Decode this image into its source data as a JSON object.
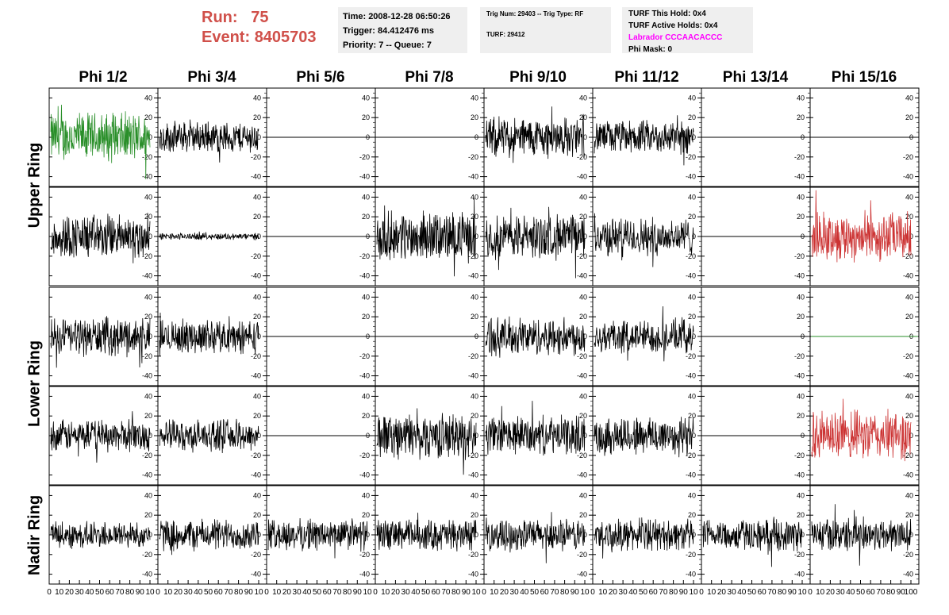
{
  "header": {
    "run_label": "Run:",
    "run_value": "75",
    "event_label": "Event:",
    "event_value": "8405703"
  },
  "info_box_1": {
    "time": "Time: 2008-12-28 06:50:26",
    "trigger": "Trigger: 84.412476 ms",
    "priority": "Priority: 7 -- Queue: 7"
  },
  "info_box_2": {
    "trig": "Trig Num: 29403 -- Trig Type: RF",
    "turf": "TURF: 29412"
  },
  "info_box_3": {
    "hold": "TURF This Hold: 0x4",
    "active": "TURF Active Holds: 0x4",
    "labrador": "Labrador CCCAACACCC",
    "phimask": "Phi Mask: 0"
  },
  "colors": {
    "normal": "#000000",
    "green": "#2a8f2a",
    "red": "#cc3333",
    "accent": "#d0504a",
    "magenta": "#ff00ff"
  },
  "chart_data": {
    "type": "line",
    "columns": [
      "Phi 1/2",
      "Phi 3/4",
      "Phi 5/6",
      "Phi 7/8",
      "Phi 9/10",
      "Phi 11/12",
      "Phi 13/14",
      "Phi 15/16"
    ],
    "rows": [
      "Upper Ring",
      "Lower Ring",
      "Nadir Ring"
    ],
    "ylim": [
      -50,
      50
    ],
    "yticks": [
      -40,
      -20,
      0,
      20,
      40
    ],
    "xlim": [
      0,
      100
    ],
    "xticks": [
      0,
      10,
      20,
      30,
      40,
      50,
      60,
      70,
      80,
      90,
      100
    ],
    "xticks_shown": [
      "0",
      "10",
      "20",
      "30",
      "40",
      "50",
      "60",
      "70",
      "80",
      "90",
      "10"
    ],
    "last_xticks": [
      "0",
      "10",
      "20",
      "30",
      "40",
      "50",
      "60",
      "70",
      "80",
      "90",
      "100"
    ],
    "panels": [
      [
        {
          "amp": 22,
          "color": "green"
        },
        {
          "amp": 14
        },
        {
          "amp": 0
        },
        {
          "amp": 0
        },
        {
          "amp": 18
        },
        {
          "amp": 15
        },
        {
          "amp": 0
        },
        {
          "amp": 0
        }
      ],
      [
        {
          "amp": 20
        },
        {
          "amp": 3
        },
        {
          "amp": 0
        },
        {
          "amp": 22
        },
        {
          "amp": 20
        },
        {
          "amp": 17
        },
        {
          "amp": 0
        },
        {
          "amp": 22,
          "color": "red"
        }
      ],
      [
        {
          "amp": 17
        },
        {
          "amp": 15
        },
        {
          "amp": 0
        },
        {
          "amp": 0
        },
        {
          "amp": 17
        },
        {
          "amp": 15
        },
        {
          "amp": 0
        },
        {
          "amp": 0,
          "color": "green"
        }
      ],
      [
        {
          "amp": 14
        },
        {
          "amp": 14
        },
        {
          "amp": 0
        },
        {
          "amp": 20
        },
        {
          "amp": 17
        },
        {
          "amp": 18
        },
        {
          "amp": 0
        },
        {
          "amp": 22,
          "color": "red"
        }
      ],
      [
        {
          "amp": 12
        },
        {
          "amp": 14
        },
        {
          "amp": 14
        },
        {
          "amp": 14
        },
        {
          "amp": 14
        },
        {
          "amp": 14
        },
        {
          "amp": 14
        },
        {
          "amp": 15
        }
      ]
    ]
  }
}
